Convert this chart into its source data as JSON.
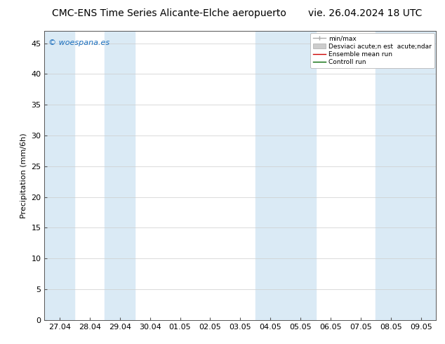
{
  "title_left": "CMC-ENS Time Series Alicante-Elche aeropuerto",
  "title_right": "vie. 26.04.2024 18 UTC",
  "ylabel": "Precipitation (mm/6h)",
  "watermark": "© woespana.es",
  "ylim": [
    0,
    47
  ],
  "yticks": [
    0,
    5,
    10,
    15,
    20,
    25,
    30,
    35,
    40,
    45
  ],
  "xtick_labels": [
    "27.04",
    "28.04",
    "29.04",
    "30.04",
    "01.05",
    "02.05",
    "03.05",
    "04.05",
    "05.05",
    "06.05",
    "07.05",
    "08.05",
    "09.05"
  ],
  "n_ticks": 13,
  "band_color": "#daeaf5",
  "background_color": "#ffffff",
  "legend_item1": "min/max",
  "legend_item2": "Desviaci acute;n est  acute;ndar",
  "legend_item3": "Ensemble mean run",
  "legend_item4": "Controll run",
  "title_fontsize": 10,
  "axis_fontsize": 8,
  "tick_fontsize": 8,
  "watermark_color": "#1a6ebd"
}
